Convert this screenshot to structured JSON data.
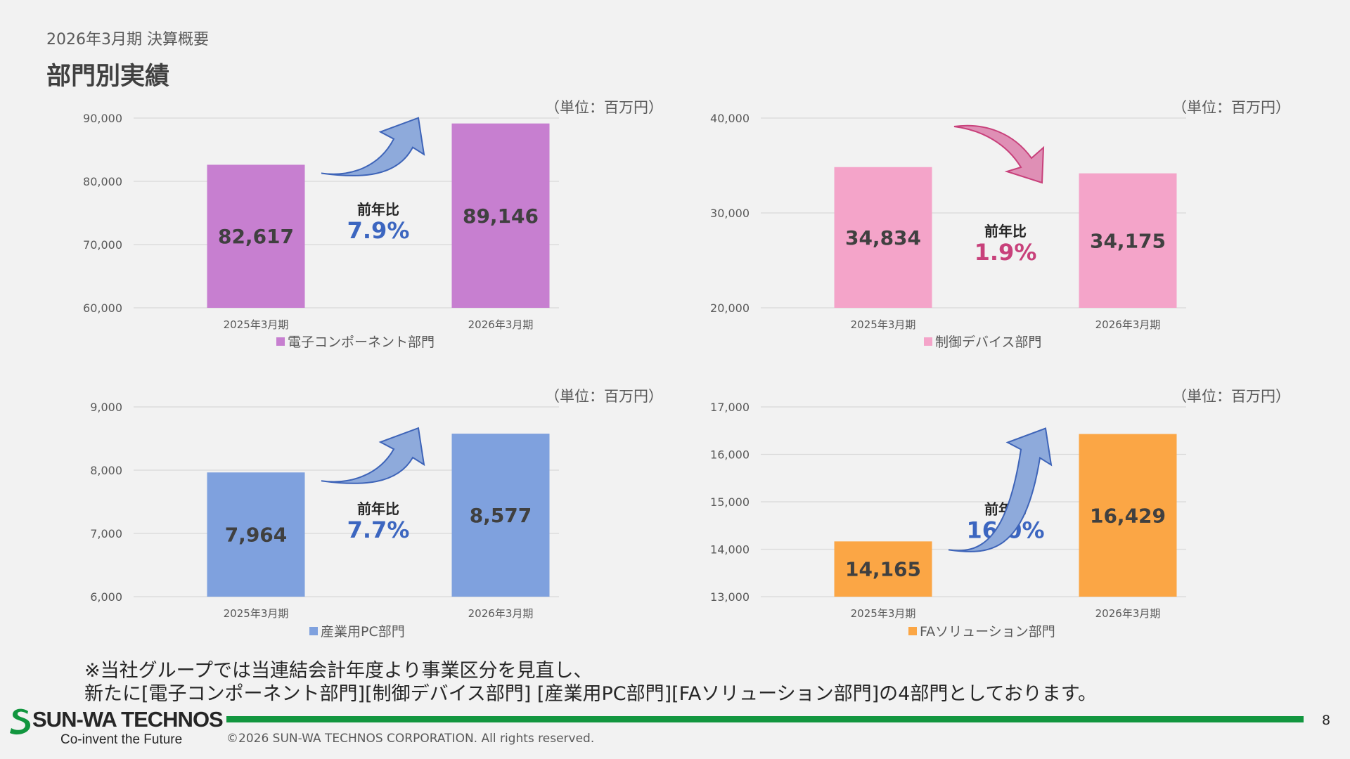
{
  "header": {
    "subtitle": "2026年3月期 決算概要",
    "title": "部門別実績"
  },
  "unit_label": "（単位：百万円）",
  "yoy_label": "前年比",
  "chart_data": [
    {
      "type": "bar",
      "categories": [
        "2025年3月期",
        "2026年3月期"
      ],
      "series": [
        {
          "name": "電子コンポーネント部門",
          "values": [
            82617,
            89146
          ]
        }
      ],
      "value_labels": [
        "82,617",
        "89,146"
      ],
      "ylim": [
        60000,
        90000
      ],
      "yticks": [
        60000,
        70000,
        80000,
        90000
      ],
      "ytick_labels": [
        "60,000",
        "70,000",
        "80,000",
        "90,000"
      ],
      "yoy": "7.9%",
      "yoy_color": "#3c66c0",
      "bar_color": "#c77fd0",
      "arrow": "up",
      "arrow_color": "#8eaadb",
      "arrow_stroke": "#3e64b8",
      "grid": true,
      "legend": "bottom"
    },
    {
      "type": "bar",
      "categories": [
        "2025年3月期",
        "2026年3月期"
      ],
      "series": [
        {
          "name": "制御デバイス部門",
          "values": [
            34834,
            34175
          ]
        }
      ],
      "value_labels": [
        "34,834",
        "34,175"
      ],
      "ylim": [
        20000,
        40000
      ],
      "yticks": [
        20000,
        30000,
        40000
      ],
      "ytick_labels": [
        "20,000",
        "30,000",
        "40,000"
      ],
      "yoy": "1.9%",
      "yoy_color": "#c8417b",
      "bar_color": "#f4a4c9",
      "arrow": "down",
      "arrow_color": "#df8fb5",
      "arrow_stroke": "#c8417b",
      "grid": true,
      "legend": "bottom"
    },
    {
      "type": "bar",
      "categories": [
        "2025年3月期",
        "2026年3月期"
      ],
      "series": [
        {
          "name": "産業用PC部門",
          "values": [
            7964,
            8577
          ]
        }
      ],
      "value_labels": [
        "7,964",
        "8,577"
      ],
      "ylim": [
        6000,
        9000
      ],
      "yticks": [
        6000,
        7000,
        8000,
        9000
      ],
      "ytick_labels": [
        "6,000",
        "7,000",
        "8,000",
        "9,000"
      ],
      "yoy": "7.7%",
      "yoy_color": "#3c66c0",
      "bar_color": "#7fa1de",
      "arrow": "up",
      "arrow_color": "#8eaadb",
      "arrow_stroke": "#3e64b8",
      "grid": true,
      "legend": "bottom"
    },
    {
      "type": "bar",
      "categories": [
        "2025年3月期",
        "2026年3月期"
      ],
      "series": [
        {
          "name": "FAソリューション部門",
          "values": [
            14165,
            16429
          ]
        }
      ],
      "value_labels": [
        "14,165",
        "16,429"
      ],
      "ylim": [
        13000,
        17000
      ],
      "yticks": [
        13000,
        14000,
        15000,
        16000,
        17000
      ],
      "ytick_labels": [
        "13,000",
        "14,000",
        "15,000",
        "16,000",
        "17,000"
      ],
      "yoy": "16.0%",
      "yoy_color": "#3c66c0",
      "bar_color": "#fba645",
      "arrow": "up",
      "arrow_color": "#8eaadb",
      "arrow_stroke": "#3e64b8",
      "grid": true,
      "legend": "bottom"
    }
  ],
  "note": {
    "line1": "※当社グループでは当連結会計年度より事業区分を見直し、",
    "line2": "新たに[電子コンポーネント部門][制御デバイス部門] [産業用PC部門][FAソリューション部門]の4部門としております。"
  },
  "footer": {
    "company_logo": "SUN-WA TECHNOS",
    "tagline": "Co-invent the Future",
    "copyright": "©2026 SUN-WA TECHNOS CORPORATION. All rights reserved.",
    "page_number": "8"
  },
  "colors": {
    "footer_bar": "#12963f",
    "logo_mark": "#12963f"
  }
}
